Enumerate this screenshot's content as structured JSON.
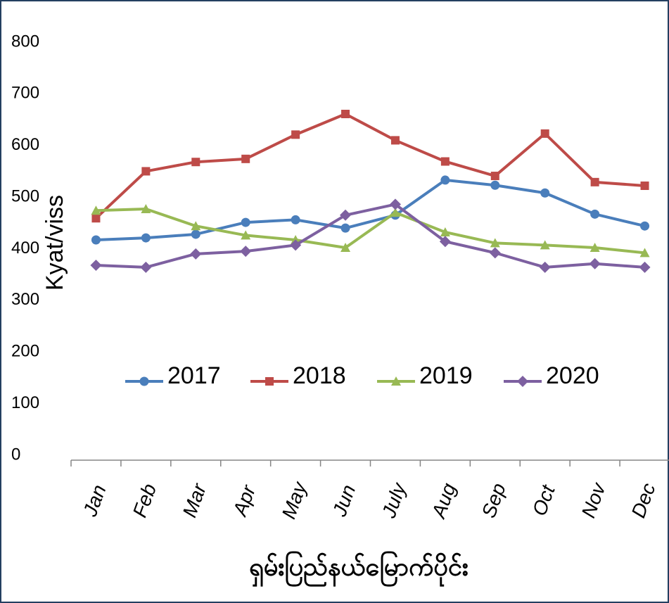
{
  "chart_data": {
    "type": "line",
    "y_label": "Kyat/viss",
    "x_label": "ရှမ်းပြည်နယ်မြောက်ပိုင်း",
    "categories": [
      "Jan",
      "Feb",
      "Mar",
      "Apr",
      "May",
      "Jun",
      "July",
      "Aug",
      "Sep",
      "Oct",
      "Nov",
      "Dec"
    ],
    "series": [
      {
        "name": "2017",
        "color": "#4a7ebb",
        "marker": "circle",
        "values": [
          417,
          421,
          428,
          451,
          456,
          440,
          465,
          533,
          523,
          508,
          467,
          444
        ]
      },
      {
        "name": "2018",
        "color": "#be4b48",
        "marker": "square",
        "values": [
          459,
          550,
          568,
          574,
          621,
          661,
          610,
          569,
          541,
          623,
          529,
          522
        ]
      },
      {
        "name": "2019",
        "color": "#98b954",
        "marker": "triangle",
        "values": [
          474,
          477,
          444,
          426,
          417,
          402,
          470,
          432,
          411,
          407,
          402,
          392
        ]
      },
      {
        "name": "2020",
        "color": "#7d60a0",
        "marker": "diamond",
        "values": [
          368,
          364,
          390,
          395,
          407,
          465,
          486,
          414,
          392,
          364,
          371,
          364
        ]
      }
    ],
    "ylim": [
      0,
      800
    ],
    "yticks": [
      0,
      100,
      200,
      300,
      400,
      500,
      600,
      700,
      800
    ],
    "grid": false,
    "legend": "inside"
  }
}
